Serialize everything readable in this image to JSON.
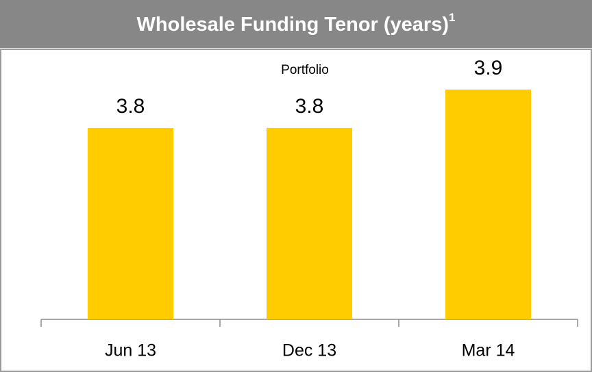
{
  "chart_data": {
    "type": "bar",
    "title": "Wholesale Funding Tenor (years)",
    "title_note": "1",
    "subtitle": "Portfolio",
    "categories": [
      "Jun 13",
      "Dec 13",
      "Mar 14"
    ],
    "values": [
      3.8,
      3.8,
      3.9
    ],
    "color": "#ffcc00",
    "ylim": [
      3.3,
      4.0
    ]
  }
}
